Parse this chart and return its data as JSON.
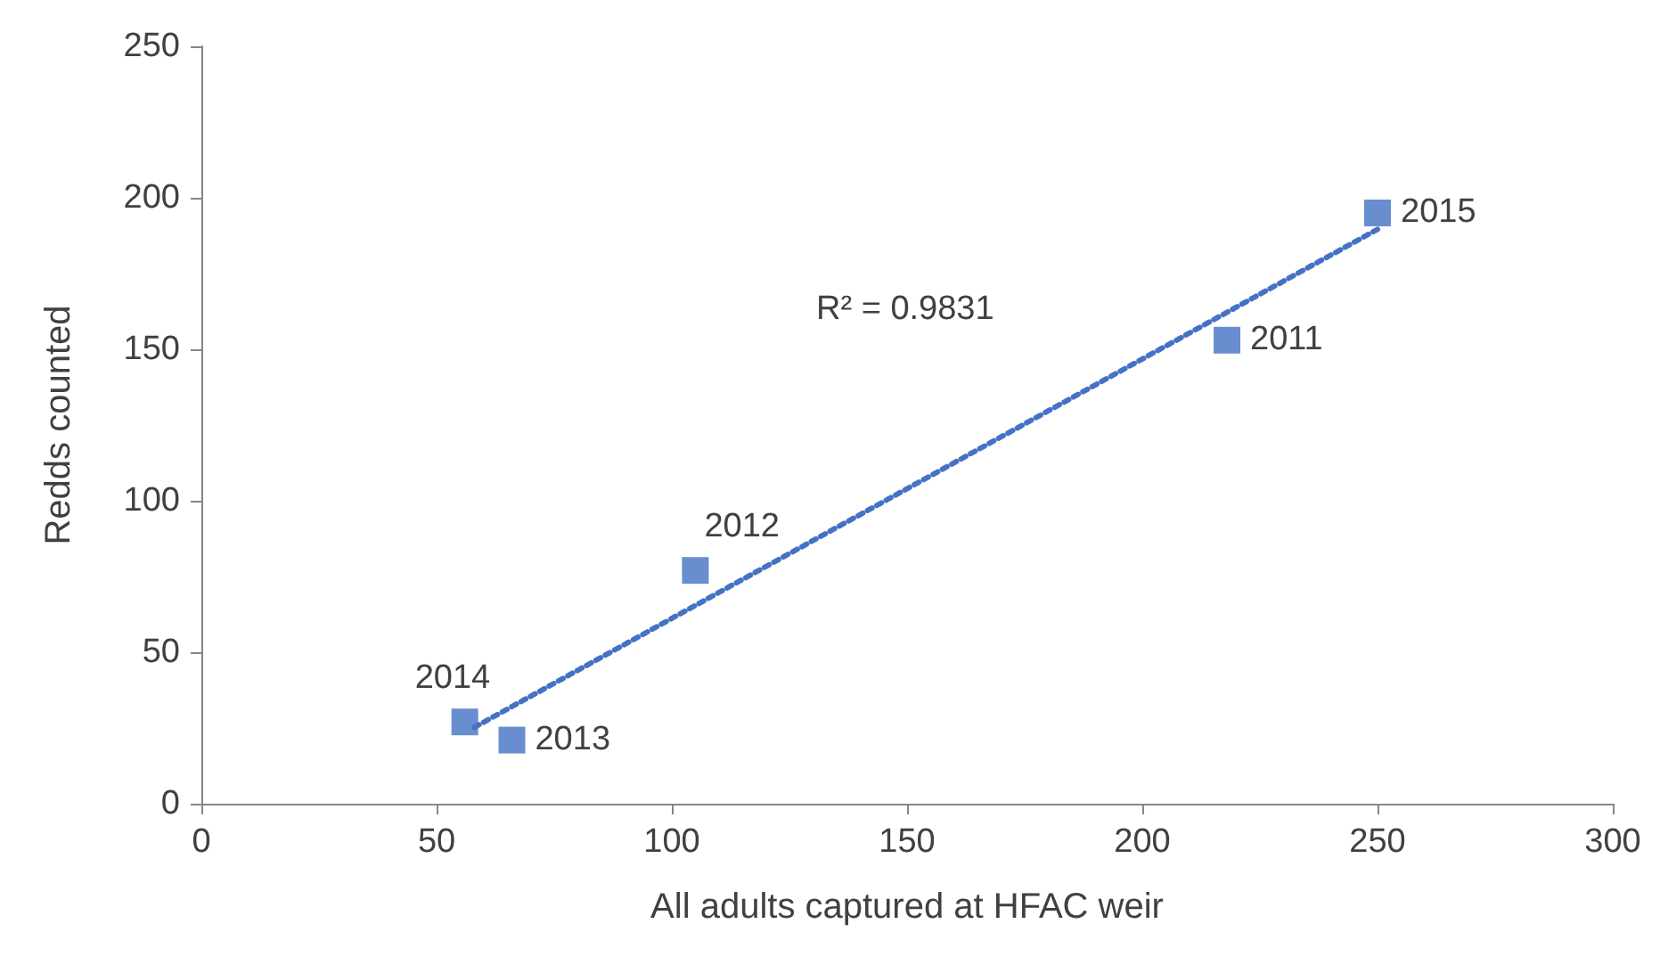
{
  "chart_data": {
    "type": "scatter",
    "xlabel": "All adults captured at HFAC weir",
    "ylabel": "Redds counted",
    "xlim": [
      0,
      300
    ],
    "xticks": [
      0,
      50,
      100,
      150,
      200,
      250,
      300
    ],
    "ylim": [
      0,
      250
    ],
    "yticks": [
      0,
      50,
      100,
      150,
      200,
      250
    ],
    "grid": false,
    "series": [
      {
        "color": "#4472c4",
        "marker": "square",
        "x": [
          218,
          105,
          66,
          56,
          250
        ],
        "values": [
          153,
          77,
          21,
          27,
          195
        ]
      },
      {
        "type": "line",
        "color": "#4472c4",
        "marker": "none",
        "line_style": "dotted",
        "x": [
          58,
          250
        ],
        "values": [
          25.2,
          189.6
        ]
      }
    ],
    "annotations": [
      "R² = 0.9831",
      {
        "text": "2011",
        "x": 218,
        "y": 153
      },
      {
        "text": "2012",
        "x": 105,
        "y": 77
      },
      {
        "text": "2013",
        "x": 66,
        "y": 21
      },
      {
        "text": "2014",
        "x": 56,
        "y": 27
      },
      {
        "text": "2015",
        "x": 250,
        "y": 195
      }
    ]
  }
}
